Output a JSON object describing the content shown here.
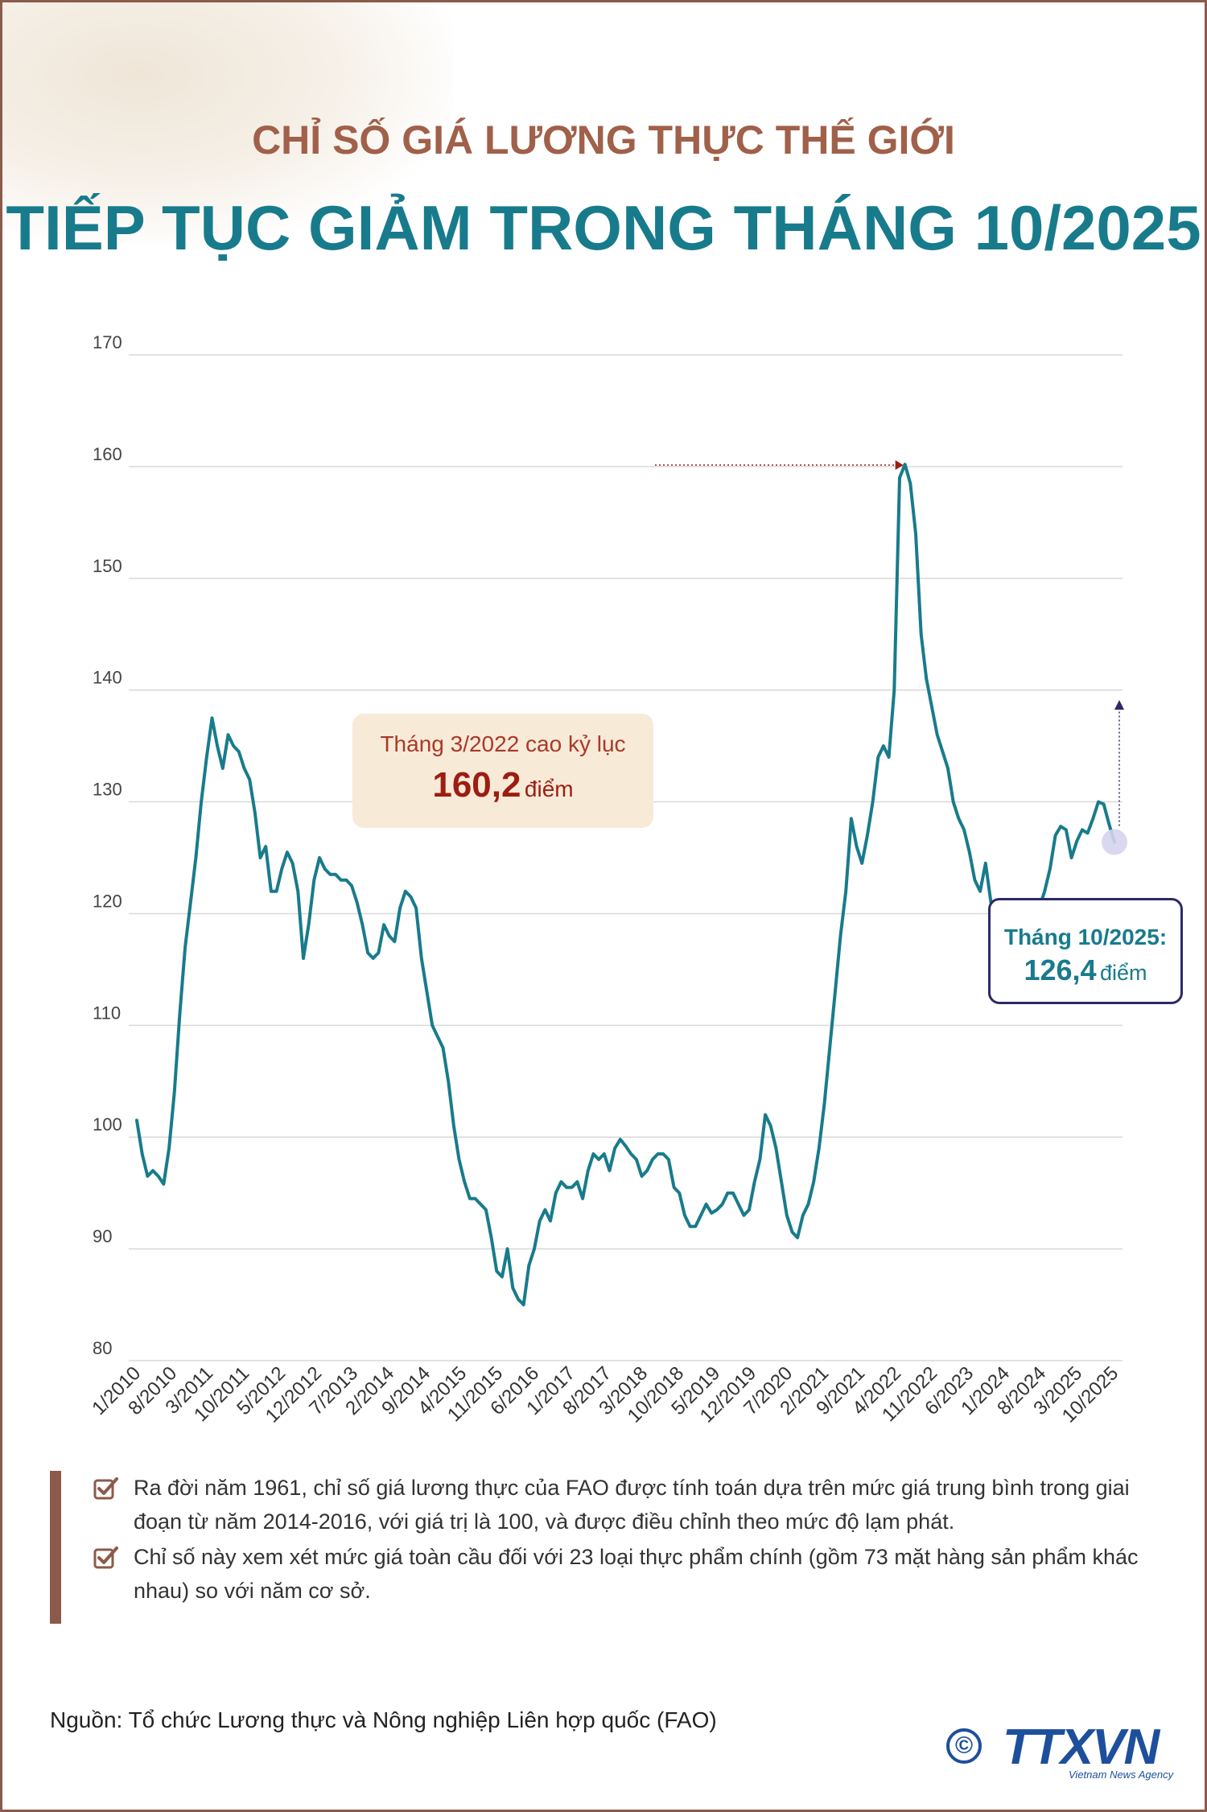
{
  "header": {
    "supertitle": "CHỈ SỐ GIÁ LƯƠNG THỰC THẾ GIỚI",
    "title": "TIẾP TỤC GIẢM TRONG THÁNG 10/2025"
  },
  "colors": {
    "line": "#187b8c",
    "title_supertitle": "#a0604a",
    "title_main": "#187b8c",
    "peak_callout_bg": "#f7ead7",
    "peak_callout_text": "#9c1d12",
    "frame": "#8b5a4a",
    "last_marker": "#d6d3ee"
  },
  "chart_data": {
    "type": "line",
    "ylim": [
      80,
      170
    ],
    "yticks": [
      "170",
      "160",
      "150",
      "140",
      "130",
      "120",
      "110",
      "100",
      "90",
      "80"
    ],
    "xticks": [
      "1/2010",
      "8/2010",
      "3/2011",
      "10/2011",
      "5/2012",
      "12/2012",
      "7/2013",
      "2/2014",
      "9/2014",
      "4/2015",
      "11/2015",
      "6/2016",
      "1/2017",
      "8/2017",
      "3/2018",
      "10/2018",
      "5/2019",
      "12/2019",
      "7/2020",
      "2/2021",
      "9/2021",
      "4/2022",
      "11/2022",
      "6/2023",
      "1/2024",
      "8/2024",
      "3/2025",
      "10/2025"
    ],
    "grid": true,
    "series": [
      {
        "values": [
          101.5,
          98.5,
          96.5,
          97,
          96.5,
          95.8,
          99,
          104,
          111,
          117,
          121,
          125,
          130,
          134,
          137.5,
          135,
          133,
          136,
          135,
          134.5,
          133,
          132,
          129,
          125,
          126,
          122,
          122,
          124,
          125.5,
          124.5,
          122,
          116,
          119,
          123,
          125,
          124,
          123.5,
          123.5,
          123,
          123,
          122.5,
          121,
          119,
          116.5,
          116,
          116.5,
          119,
          118,
          117.5,
          120.5,
          122,
          121.5,
          120.5,
          116,
          113,
          110,
          109,
          108,
          105,
          101,
          98,
          96,
          94.5,
          94.5,
          94,
          93.5,
          91,
          88,
          87.5,
          90,
          86.5,
          85.5,
          85,
          88.5,
          90,
          92.5,
          93.5,
          92.5,
          95,
          96,
          95.5,
          95.5,
          96,
          94.5,
          97,
          98.5,
          98,
          98.5,
          97,
          99,
          99.8,
          99.2,
          98.5,
          98,
          96.5,
          97,
          98,
          98.5,
          98.5,
          98,
          95.5,
          95,
          93,
          92,
          92,
          93,
          94,
          93.2,
          93.5,
          94,
          95,
          95,
          94,
          93,
          93.5,
          96,
          98,
          102,
          101,
          99,
          96,
          93,
          91.5,
          91,
          93,
          94,
          96,
          99,
          103,
          108,
          113,
          118,
          122,
          128.5,
          126,
          124.5,
          127,
          130,
          134,
          135,
          134,
          140,
          159,
          160.2,
          158.5,
          154,
          145,
          141,
          138.5,
          136,
          134.5,
          133,
          130,
          128.5,
          127.5,
          125.5,
          123,
          122,
          124.5,
          121,
          121,
          120,
          119,
          118,
          117.5,
          118,
          120,
          121,
          120.5,
          122,
          124,
          127,
          127.8,
          127.5,
          125,
          126.5,
          127.5,
          127.2,
          128.5,
          130,
          129.8,
          128,
          126.4
        ]
      }
    ],
    "annotations": [
      {
        "line1": "Tháng 3/2022 cao kỷ lục",
        "value": "160,2",
        "unit": "điểm"
      },
      {
        "line1": "Tháng 10/2025:",
        "value": "126,4",
        "unit": "điểm"
      }
    ]
  },
  "notes": [
    "Ra đời năm 1961, chỉ số giá lương thực của FAO được tính toán dựa trên mức giá trung bình trong giai đoạn từ năm 2014-2016, với giá trị là 100, và được điều chỉnh theo mức độ lạm phát.",
    "Chỉ số này xem xét mức giá toàn cầu đối với 23 loại thực phẩm chính (gồm 73 mặt hàng sản phẩm khác nhau) so với năm cơ sở."
  ],
  "source": "Nguồn: Tổ chức Lương thực và Nông nghiệp Liên hợp quốc (FAO)",
  "logo": {
    "copyright_symbol": "©",
    "brand": "TTXVN",
    "agency": "Vietnam News Agency",
    "icon": "copyright-icon"
  }
}
